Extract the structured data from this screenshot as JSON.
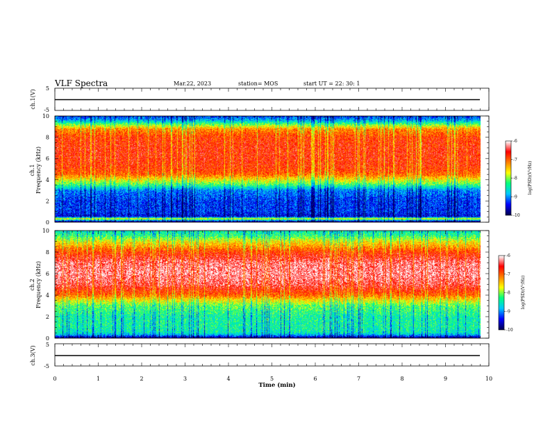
{
  "header": {
    "title": "VLF Spectra",
    "date": "Mar.22, 2023",
    "station": "station= MOS",
    "start": "start  UT =   22: 30: 1"
  },
  "panels": {
    "ch1_wave_label": "ch.1(V)",
    "ch1_spec_label": "ch.1",
    "ch2_spec_label": "ch.2",
    "ch3_wave_label": "ch.3(V)",
    "freq_label": "Frequency (kHz)",
    "colorbar_label": "log(PSD)(V²/Hz)"
  },
  "colors": {
    "background": "#ffffff",
    "axis": "#000000",
    "colormap": [
      "#000050",
      "#0000ff",
      "#00c8ff",
      "#00ff80",
      "#ffff00",
      "#ff8000",
      "#ff0000",
      "#ffffff"
    ]
  },
  "chart_data": [
    {
      "type": "line",
      "title": "VLF Spectra",
      "ylabel": "ch.1(V)",
      "ylim": [
        -5,
        5
      ],
      "yticks": [
        5,
        -5
      ],
      "xlim": [
        0,
        10
      ],
      "series": [
        {
          "x": [
            0,
            9.8
          ],
          "values": [
            -1.5,
            -1.5
          ]
        }
      ]
    },
    {
      "type": "heatmap",
      "ylabel": "Frequency (kHz)",
      "channel": "ch.1",
      "xlim": [
        0,
        9.8
      ],
      "ylim": [
        0,
        10
      ],
      "yticks": [
        0,
        2,
        4,
        6,
        8,
        10
      ],
      "zlim": [
        -10,
        -6
      ],
      "colorbar_ticks": [
        -6,
        -7,
        -8,
        -9,
        -10
      ],
      "colorbar_label": "log(PSD)(V²/Hz)",
      "profile_freq_khz": [
        0,
        0.3,
        0.5,
        1,
        2,
        3,
        3.5,
        4,
        4.5,
        5,
        6,
        7,
        8,
        8.8,
        9.2,
        9.6,
        10
      ],
      "profile_log_psd": [
        -10,
        -7.5,
        -9.5,
        -9.3,
        -9.3,
        -9.0,
        -8.2,
        -7.6,
        -7.0,
        -6.8,
        -6.7,
        -6.7,
        -6.8,
        -7.2,
        -8.0,
        -8.8,
        -9.3
      ]
    },
    {
      "type": "heatmap",
      "ylabel": "Frequency (kHz)",
      "channel": "ch.2",
      "xlim": [
        0,
        9.8
      ],
      "ylim": [
        0,
        10
      ],
      "yticks": [
        0,
        2,
        4,
        6,
        8,
        10
      ],
      "zlim": [
        -10,
        -6
      ],
      "colorbar_ticks": [
        -6,
        -7,
        -8,
        -9,
        -10
      ],
      "colorbar_label": "log(PSD)(V²/Hz)",
      "profile_freq_khz": [
        0,
        0.3,
        0.5,
        1,
        2,
        3,
        3.5,
        4,
        5,
        6,
        7,
        8,
        8.5,
        9,
        9.5,
        10
      ],
      "profile_log_psd": [
        -9.8,
        -8.8,
        -8.5,
        -8.4,
        -8.4,
        -8.1,
        -7.6,
        -7.0,
        -6.4,
        -6.2,
        -6.3,
        -6.8,
        -7.2,
        -7.6,
        -8.2,
        -8.5
      ]
    },
    {
      "type": "line",
      "ylabel": "ch.3(V)",
      "xlabel": "Time (min)",
      "ylim": [
        -5,
        5
      ],
      "yticks": [
        5,
        -5
      ],
      "xlim": [
        0,
        10
      ],
      "xticks": [
        0,
        1,
        2,
        3,
        4,
        5,
        6,
        7,
        8,
        9,
        10
      ],
      "series": [
        {
          "x": [
            0,
            9.8
          ],
          "values": [
            -1.5,
            -1.5
          ]
        }
      ]
    }
  ]
}
